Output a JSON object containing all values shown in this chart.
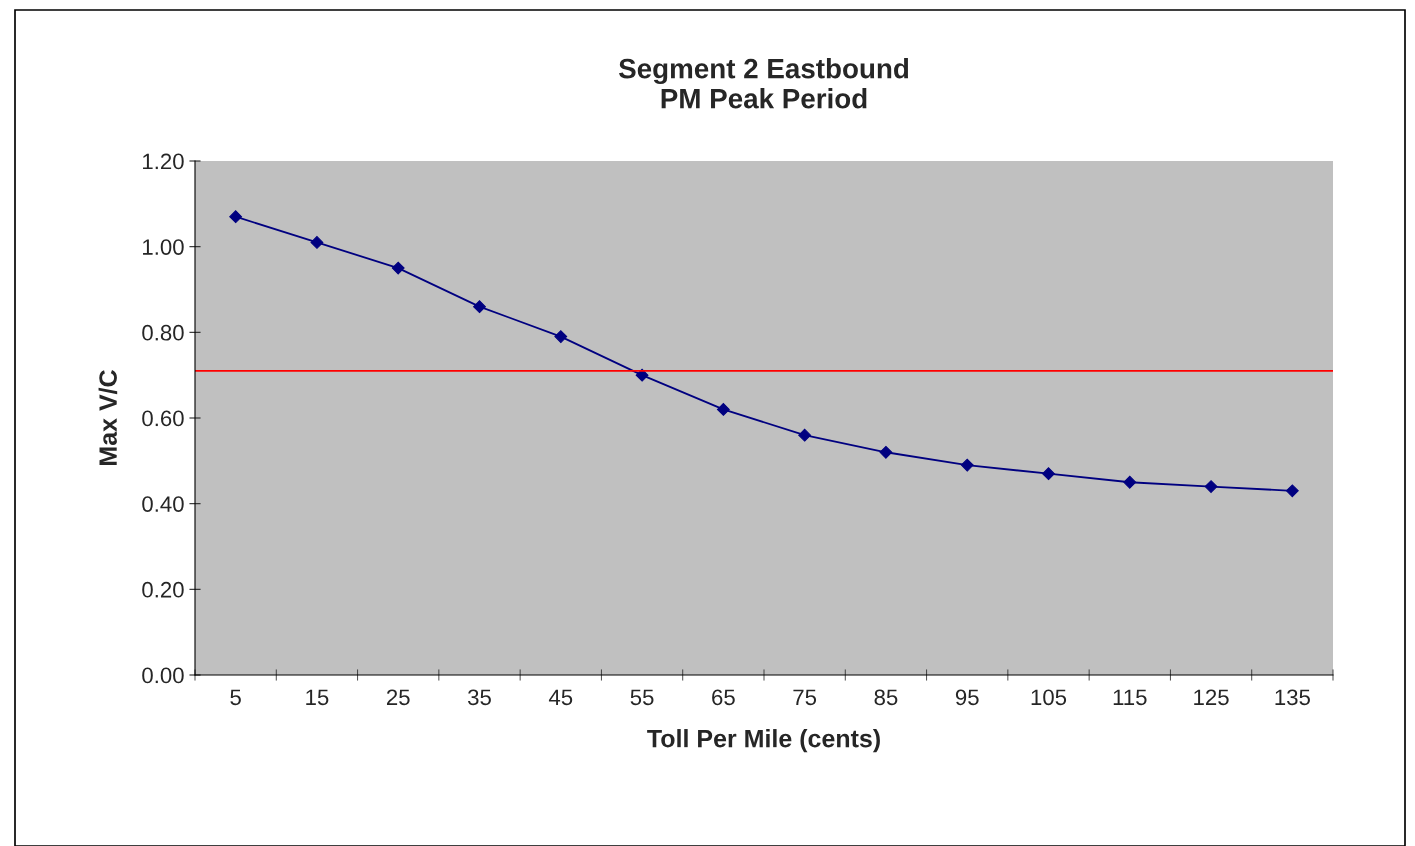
{
  "chart_data": {
    "type": "line",
    "title": "Segment 2 Eastbound\nPM Peak Period",
    "xlabel": "Toll Per Mile (cents)",
    "ylabel": "Max V/C",
    "categories": [
      "5",
      "15",
      "25",
      "35",
      "45",
      "55",
      "65",
      "75",
      "85",
      "95",
      "105",
      "115",
      "125",
      "135"
    ],
    "series": [
      {
        "color": "#000080",
        "values": [
          1.07,
          1.01,
          0.95,
          0.86,
          0.79,
          0.7,
          0.62,
          0.56,
          0.52,
          0.49,
          0.47,
          0.45,
          0.44,
          0.43
        ]
      }
    ],
    "ylim": [
      0,
      1.2
    ],
    "yticks": [
      {
        "value": 0,
        "label": "0.00"
      },
      {
        "value": 0.2,
        "label": "0.20"
      },
      {
        "value": 0.4,
        "label": "0.40"
      },
      {
        "value": 0.6,
        "label": "0.60"
      },
      {
        "value": 0.8,
        "label": "0.80"
      },
      {
        "value": 1.0,
        "label": "1.00"
      },
      {
        "value": 1.2,
        "label": "1.20"
      }
    ],
    "ref_lines": [
      {
        "axis": "y",
        "value": 0.71,
        "color": "#ff0000"
      }
    ],
    "marker": "diamond",
    "line_style": "solid",
    "grid": false,
    "legend": false
  }
}
